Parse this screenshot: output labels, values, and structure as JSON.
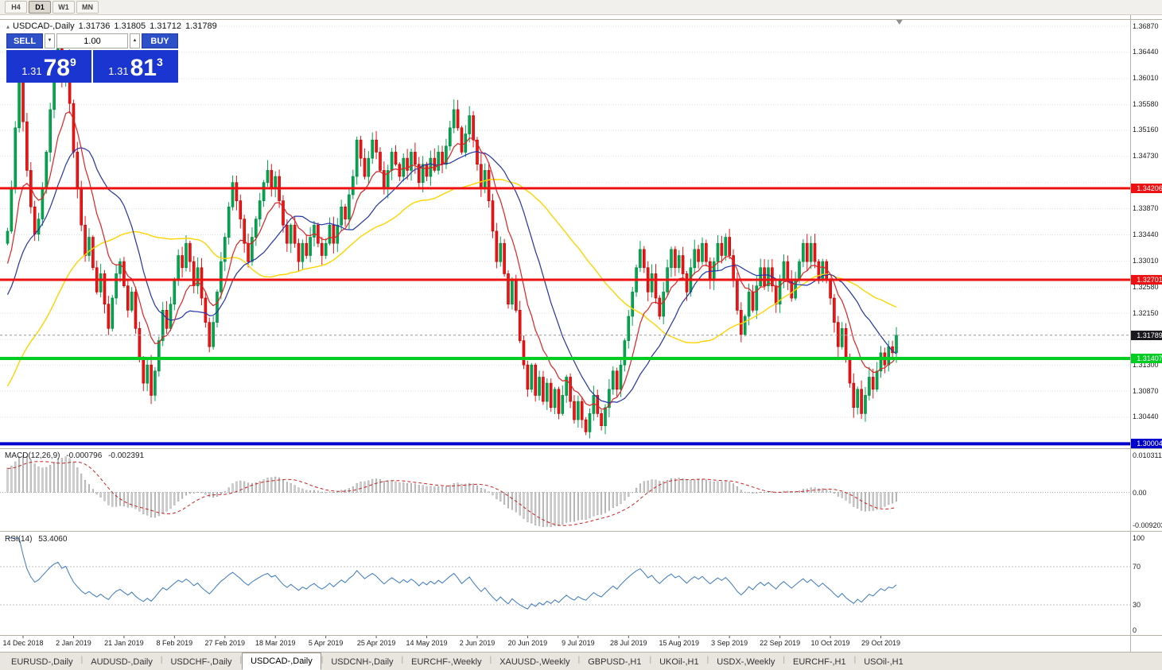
{
  "toolbar": {
    "periods": [
      "H4",
      "D1",
      "W1",
      "MN"
    ],
    "active": "D1"
  },
  "chart_header": {
    "collapse_icon": "▴",
    "title": "USDCAD-,Daily",
    "open": "1.31736",
    "high": "1.31805",
    "low": "1.31712",
    "close": "1.31789"
  },
  "trade_panel": {
    "sell_label": "SELL",
    "buy_label": "BUY",
    "volume": "1.00",
    "volume_down_icon": "▼",
    "volume_up_icon": "▲",
    "sell_price": {
      "prefix": "1.31",
      "big": "78",
      "sup": "9"
    },
    "buy_price": {
      "prefix": "1.31",
      "big": "81",
      "sup": "3"
    }
  },
  "price_axis": {
    "ticks": [
      {
        "price": 1.3687,
        "label": "1.36870"
      },
      {
        "price": 1.3644,
        "label": "1.36440"
      },
      {
        "price": 1.3601,
        "label": "1.36010"
      },
      {
        "price": 1.3558,
        "label": "1.35580"
      },
      {
        "price": 1.3516,
        "label": "1.35160"
      },
      {
        "price": 1.3473,
        "label": "1.34730"
      },
      {
        "price": 1.343,
        "label": ""
      },
      {
        "price": 1.3387,
        "label": "1.33870"
      },
      {
        "price": 1.3344,
        "label": "1.33440"
      },
      {
        "price": 1.3301,
        "label": "1.33010"
      },
      {
        "price": 1.3258,
        "label": "1.32580"
      },
      {
        "price": 1.3215,
        "label": "1.32150"
      },
      {
        "price": 1.3172,
        "label": ""
      },
      {
        "price": 1.313,
        "label": "1.31300"
      },
      {
        "price": 1.3087,
        "label": "1.30870"
      },
      {
        "price": 1.3044,
        "label": "1.30440"
      },
      {
        "price": 1.3001,
        "label": ""
      }
    ]
  },
  "levels": [
    {
      "price": 1.34206,
      "label": "1.34206",
      "color": "#ee1111",
      "thickness": 3
    },
    {
      "price": 1.32701,
      "label": "1.32701",
      "color": "#ee1111",
      "thickness": 3
    },
    {
      "price": 1.31407,
      "label": "1.31407",
      "color": "#00cc22",
      "thickness": 4
    },
    {
      "price": 1.30004,
      "label": "1.30004",
      "color": "#0000cc",
      "thickness": 4
    }
  ],
  "current_price": {
    "price": 1.31789,
    "label": "1.31789",
    "badge_color": "#1a1a1e",
    "line_color": "#999999"
  },
  "macd_pane": {
    "title": "MACD(12,26,9)",
    "value_main": "-0.000796",
    "value_signal": "-0.002391",
    "scale": [
      {
        "value": 0.010311,
        "label": "0.010311"
      },
      {
        "value": 0.0,
        "label": "0.00"
      },
      {
        "value": -0.009203,
        "label": "-0.009203"
      }
    ],
    "histogram_color": "#cfcfcf",
    "histogram_border": "#8c8c8c",
    "signal_color": "#cc2222"
  },
  "rsi_pane": {
    "title": "RSI(14)",
    "value": "53.4060",
    "scale": [
      {
        "value": 100,
        "label": "100"
      },
      {
        "value": 70,
        "label": "70"
      },
      {
        "value": 30,
        "label": "30"
      },
      {
        "value": 0,
        "label": "0"
      }
    ],
    "level_lines": [
      70,
      30
    ],
    "line_color": "#3a78c2"
  },
  "time_axis": {
    "first_bar_index": 4,
    "bars_per_label": 13,
    "labels": [
      "14 Dec 2018",
      "2 Jan 2019",
      "21 Jan 2019",
      "8 Feb 2019",
      "27 Feb 2019",
      "18 Mar 2019",
      "5 Apr 2019",
      "25 Apr 2019",
      "14 May 2019",
      "2 Jun 2019",
      "20 Jun 2019",
      "9 Jul 2019",
      "28 Jul 2019",
      "15 Aug 2019",
      "3 Sep 2019",
      "22 Sep 2019",
      "10 Oct 2019",
      "29 Oct 2019"
    ]
  },
  "tabs": {
    "separator": "|",
    "active": "USDCAD-,Daily",
    "items": [
      "EURUSD-,Daily",
      "AUDUSD-,Daily",
      "USDCHF-,Daily",
      "USDCAD-,Daily",
      "USDCNH-,Daily",
      "EURCHF-,Weekly",
      "XAUUSD-,Weekly",
      "GBPUSD-,H1",
      "UKOil-,H1",
      "USDX-,Weekly",
      "EURCHF-,H1",
      "USOil-,H1"
    ]
  },
  "chart_data": {
    "type": "candlestick",
    "symbol": "USDCAD-",
    "timeframe": "Daily",
    "last_ohlc": {
      "open": 1.31736,
      "high": 1.31805,
      "low": 1.31712,
      "close": 1.31789
    },
    "price_axis_range": [
      1.29955,
      1.36975
    ],
    "colors": {
      "bull": "#00a850",
      "bull_border": "#008238",
      "bear": "#f01414",
      "bear_border": "#b40000",
      "ma_fast": "#dd2222",
      "ma_mid": "#2233aa",
      "ma_slow": "#ffd400",
      "grid": "#e0e0e0"
    },
    "indicators": {
      "ma": [
        {
          "type": "ema",
          "period": 10,
          "color": "#dd2222"
        },
        {
          "type": "sma",
          "period": 20,
          "color": "#2233aa"
        },
        {
          "type": "sma",
          "period": 50,
          "color": "#ffd400"
        }
      ],
      "macd": {
        "fast": 12,
        "slow": 26,
        "signal": 9
      },
      "rsi": {
        "period": 14
      }
    },
    "closes": [
      1.335,
      1.342,
      1.352,
      1.36,
      1.353,
      1.345,
      1.339,
      1.3345,
      1.337,
      1.342,
      1.348,
      1.355,
      1.361,
      1.365,
      1.36,
      1.364,
      1.356,
      1.348,
      1.342,
      1.336,
      1.331,
      1.334,
      1.329,
      1.325,
      1.328,
      1.323,
      1.319,
      1.324,
      1.328,
      1.33,
      1.326,
      1.322,
      1.325,
      1.319,
      1.314,
      1.31,
      1.313,
      1.308,
      1.312,
      1.317,
      1.322,
      1.319,
      1.323,
      1.327,
      1.331,
      1.329,
      1.333,
      1.33,
      1.326,
      1.329,
      1.324,
      1.32,
      1.316,
      1.32,
      1.325,
      1.33,
      1.334,
      1.339,
      1.343,
      1.34,
      1.337,
      1.333,
      1.33,
      1.334,
      1.337,
      1.34,
      1.343,
      1.345,
      1.342,
      1.344,
      1.34,
      1.336,
      1.333,
      1.336,
      1.333,
      1.33,
      1.333,
      1.331,
      1.334,
      1.336,
      1.333,
      1.331,
      1.333,
      1.336,
      1.333,
      1.336,
      1.339,
      1.337,
      1.341,
      1.344,
      1.35,
      1.347,
      1.344,
      1.347,
      1.35,
      1.348,
      1.345,
      1.342,
      1.345,
      1.348,
      1.346,
      1.344,
      1.347,
      1.345,
      1.348,
      1.346,
      1.343,
      1.346,
      1.344,
      1.347,
      1.345,
      1.348,
      1.346,
      1.349,
      1.352,
      1.355,
      1.352,
      1.348,
      1.351,
      1.354,
      1.35,
      1.346,
      1.342,
      1.345,
      1.34,
      1.335,
      1.33,
      1.333,
      1.328,
      1.323,
      1.327,
      1.322,
      1.317,
      1.313,
      1.309,
      1.313,
      1.308,
      1.311,
      1.307,
      1.31,
      1.306,
      1.309,
      1.305,
      1.308,
      1.311,
      1.307,
      1.304,
      1.307,
      1.304,
      1.302,
      1.305,
      1.308,
      1.305,
      1.303,
      1.306,
      1.309,
      1.312,
      1.309,
      1.313,
      1.317,
      1.321,
      1.325,
      1.329,
      1.332,
      1.329,
      1.325,
      1.328,
      1.324,
      1.321,
      1.325,
      1.329,
      1.332,
      1.329,
      1.331,
      1.328,
      1.325,
      1.329,
      1.332,
      1.33,
      1.333,
      1.33,
      1.327,
      1.33,
      1.333,
      1.331,
      1.334,
      1.331,
      1.327,
      1.322,
      1.318,
      1.321,
      1.325,
      1.322,
      1.326,
      1.329,
      1.326,
      1.329,
      1.326,
      1.323,
      1.327,
      1.33,
      1.327,
      1.324,
      1.327,
      1.33,
      1.333,
      1.33,
      1.333,
      1.33,
      1.327,
      1.33,
      1.327,
      1.324,
      1.32,
      1.316,
      1.319,
      1.314,
      1.31,
      1.306,
      1.309,
      1.305,
      1.308,
      1.311,
      1.309,
      1.312,
      1.315,
      1.313,
      1.316,
      1.315,
      1.31789
    ]
  }
}
